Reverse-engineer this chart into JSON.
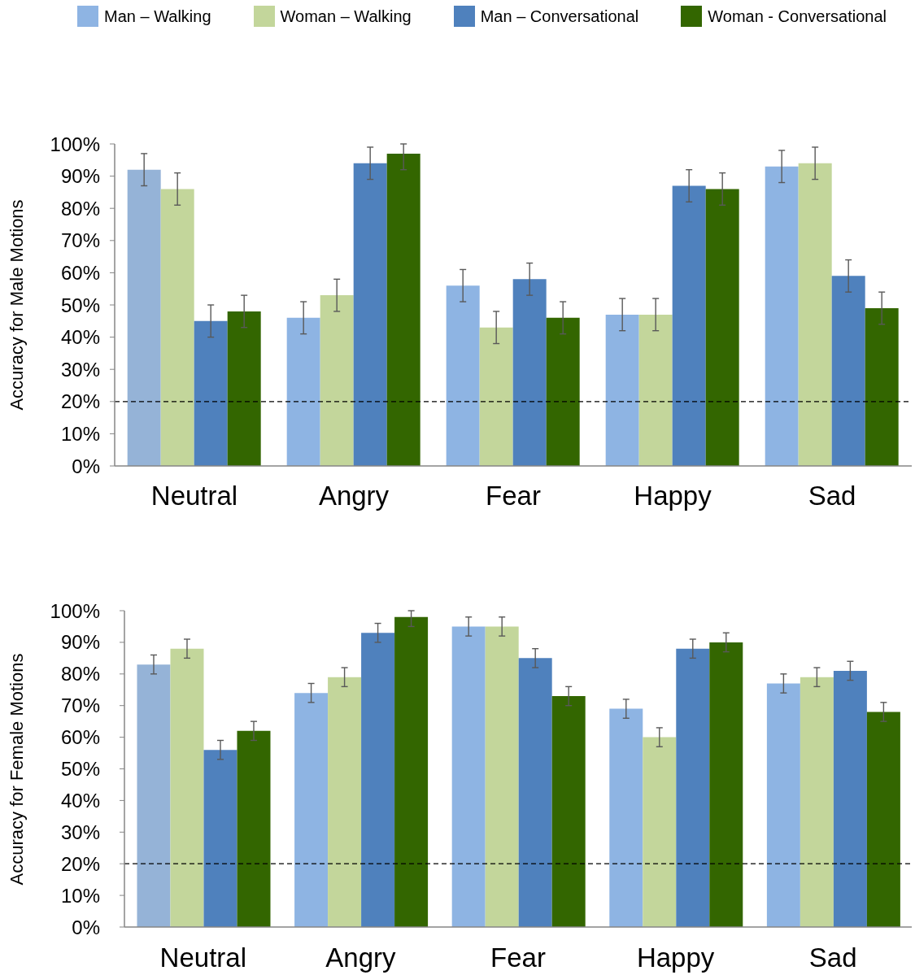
{
  "chart_data": [
    {
      "type": "bar",
      "ylabel": "Accuracy for Male Motions",
      "categories": [
        "Neutral",
        "Angry",
        "Fear",
        "Happy",
        "Sad"
      ],
      "series": [
        {
          "name": "Man – Walking",
          "color": "#8eb4e3",
          "colors": [
            "#95b3d7",
            "#8eb4e3",
            "#8eb4e3",
            "#8eb4e3",
            "#8eb4e3"
          ],
          "values": [
            92,
            46,
            56,
            47,
            93
          ],
          "errors": [
            5,
            5,
            5,
            5,
            5
          ]
        },
        {
          "name": "Woman – Walking",
          "color": "#c3d69b",
          "values": [
            86,
            53,
            43,
            47,
            94
          ],
          "errors": [
            5,
            5,
            5,
            5,
            5
          ]
        },
        {
          "name": "Man – Conversational",
          "color": "#4f81bd",
          "values": [
            45,
            94,
            58,
            87,
            59
          ],
          "errors": [
            5,
            5,
            5,
            5,
            5
          ]
        },
        {
          "name": "Woman - Conversational",
          "color": "#336600",
          "values": [
            48,
            97,
            46,
            86,
            49
          ],
          "errors": [
            5,
            [
              92,
              100
            ],
            5,
            5,
            5
          ]
        }
      ],
      "ylim": [
        0,
        100
      ],
      "yticks": [
        {
          "value": 0,
          "label": "0%"
        },
        {
          "value": 10,
          "label": "10%"
        },
        {
          "value": 20,
          "label": "20%"
        },
        {
          "value": 30,
          "label": "30%"
        },
        {
          "value": 40,
          "label": "40%"
        },
        {
          "value": 50,
          "label": "50%"
        },
        {
          "value": 60,
          "label": "60%"
        },
        {
          "value": 70,
          "label": "70%"
        },
        {
          "value": 80,
          "label": "80%"
        },
        {
          "value": 90,
          "label": "90%"
        },
        {
          "value": 100,
          "label": "100%"
        }
      ],
      "ref_lines": [
        {
          "axis": "y",
          "value": 20,
          "color": "#000000",
          "line_style": "dashed"
        }
      ],
      "legend": "top"
    },
    {
      "type": "bar",
      "ylabel": "Accuracy for Female Motions",
      "categories": [
        "Neutral",
        "Angry",
        "Fear",
        "Happy",
        "Sad"
      ],
      "series": [
        {
          "name": "Man – Walking",
          "color": "#8eb4e3",
          "colors": [
            "#95b3d7",
            "#8eb4e3",
            "#8eb4e3",
            "#8eb4e3",
            "#8eb4e3"
          ],
          "values": [
            83,
            74,
            95,
            69,
            77
          ],
          "errors": [
            3,
            3,
            3,
            3,
            3
          ]
        },
        {
          "name": "Woman – Walking",
          "color": "#c3d69b",
          "values": [
            88,
            79,
            95,
            60,
            79
          ],
          "errors": [
            3,
            3,
            3,
            3,
            3
          ]
        },
        {
          "name": "Man – Conversational",
          "color": "#4f81bd",
          "values": [
            56,
            93,
            85,
            88,
            81
          ],
          "errors": [
            3,
            3,
            3,
            3,
            3
          ]
        },
        {
          "name": "Woman - Conversational",
          "color": "#336600",
          "values": [
            62,
            98,
            73,
            90,
            68
          ],
          "errors": [
            3,
            [
              95,
              100
            ],
            3,
            3,
            3
          ]
        }
      ],
      "ylim": [
        0,
        100
      ],
      "yticks": [
        {
          "value": 0,
          "label": "0%"
        },
        {
          "value": 10,
          "label": "10%"
        },
        {
          "value": 20,
          "label": "20%"
        },
        {
          "value": 30,
          "label": "30%"
        },
        {
          "value": 40,
          "label": "40%"
        },
        {
          "value": 50,
          "label": "50%"
        },
        {
          "value": 60,
          "label": "60%"
        },
        {
          "value": 70,
          "label": "70%"
        },
        {
          "value": 80,
          "label": "80%"
        },
        {
          "value": 90,
          "label": "90%"
        },
        {
          "value": 100,
          "label": "100%"
        }
      ],
      "ref_lines": [
        {
          "axis": "y",
          "value": 20,
          "color": "#000000",
          "line_style": "dashed"
        }
      ]
    }
  ]
}
